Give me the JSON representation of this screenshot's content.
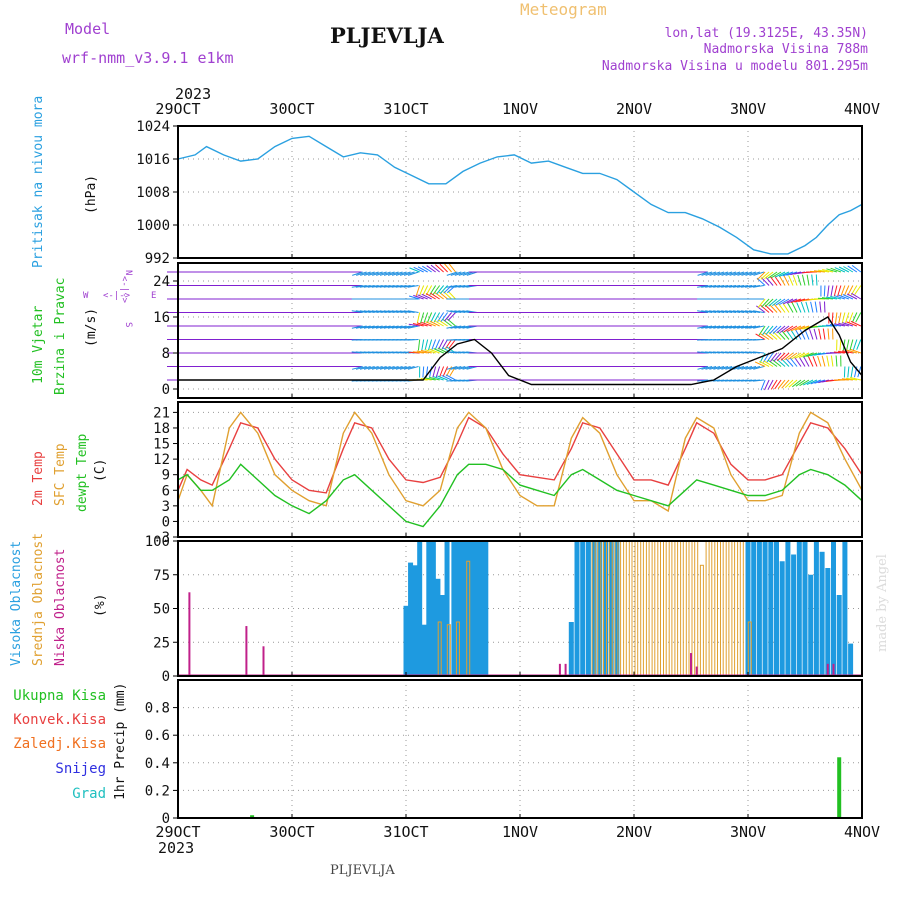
{
  "header": {
    "model_label": "Model",
    "model_name": "wrf-nmm_v3.9.1  e1km",
    "station": "PLJEVLJA",
    "product": "Meteogram",
    "lonlat": "lon,lat (19.3125E, 43.35N)",
    "elevation": "Nadmorska Visina 788m",
    "model_elevation": "Nadmorska Visina u modelu 801.295m",
    "footer_station": "PLJEVLJA",
    "credit": "made by Angel"
  },
  "colors": {
    "pressure": "#2aa0e0",
    "temp2m": "#e84040",
    "sfc": "#e0a030",
    "dewpt": "#22c022",
    "high": "#1e9ae0",
    "mid": "#e0a030",
    "low": "#c0208a",
    "wind": "#8020d0",
    "purple_text": "#a040d0",
    "grid": "#888888"
  },
  "time_axis": {
    "year": "2023",
    "ticks": [
      "29OCT",
      "30OCT",
      "31OCT",
      "1NOV",
      "2NOV",
      "3NOV",
      "4NOV"
    ]
  },
  "panels": {
    "pressure": {
      "label": "Pritisak na nivou mora",
      "unit": "(hPa)"
    },
    "wind": {
      "label1": "10m Vjetar",
      "label2": "Brzina i Pravac",
      "unit": "(m/s)",
      "compass": {
        "n": "N",
        "s": "S",
        "e": "E",
        "w": "W",
        "mid": "<-|->"
      }
    },
    "temp": {
      "label1": "2m Temp",
      "label2": "SFC Temp",
      "label3": "dewpt Temp",
      "unit": "(C)"
    },
    "cloud": {
      "label1": "Visoka Oblacnost",
      "label2": "Srednja Oblacnost",
      "label3": "Niska Oblacnost",
      "unit": "(%)"
    },
    "precip": {
      "unit": "1hr Precip (mm)",
      "legend": [
        "Ukupna Kisa",
        "Konvek.Kisa",
        "Zaledj.Kisa",
        "Snijeg",
        "Grad"
      ]
    }
  },
  "chart_data": [
    {
      "type": "line",
      "title": "Pritisak na nivou mora",
      "ylabel": "(hPa)",
      "ylim": [
        992,
        1024
      ],
      "yticks": [
        992,
        1000,
        1008,
        1016,
        1024
      ],
      "x_unit": "days since 29OCT 00Z",
      "series": [
        {
          "name": "Pritisak na nivou mora",
          "x": [
            0,
            0.15,
            0.25,
            0.4,
            0.55,
            0.7,
            0.85,
            1.0,
            1.15,
            1.3,
            1.45,
            1.6,
            1.75,
            1.9,
            2.05,
            2.2,
            2.35,
            2.5,
            2.65,
            2.8,
            2.95,
            3.1,
            3.25,
            3.4,
            3.55,
            3.7,
            3.85,
            4.0,
            4.15,
            4.3,
            4.45,
            4.6,
            4.75,
            4.9,
            5.05,
            5.2,
            5.35,
            5.5,
            5.6,
            5.7,
            5.8,
            5.9,
            6.0
          ],
          "values": [
            1016,
            1017,
            1019,
            1017,
            1015.5,
            1016,
            1019,
            1021,
            1021.5,
            1019,
            1016.5,
            1017.5,
            1017,
            1014,
            1012,
            1010,
            1010,
            1013,
            1015,
            1016.5,
            1017,
            1015,
            1015.5,
            1014,
            1012.5,
            1012.5,
            1011,
            1008,
            1005,
            1003,
            1003,
            1001.5,
            999.5,
            997,
            994,
            993,
            993,
            995,
            997,
            1000,
            1002.5,
            1003.5,
            1005
          ]
        }
      ]
    },
    {
      "type": "line",
      "title": "10m Vjetar Brzina i Pravac",
      "ylabel": "(m/s)",
      "ylim": [
        -2,
        28
      ],
      "yticks": [
        0,
        8,
        16,
        24
      ],
      "x_unit": "days since 29OCT 00Z",
      "series": [
        {
          "name": "wind speed",
          "x": [
            0,
            0.5,
            1.0,
            1.5,
            2.0,
            2.15,
            2.3,
            2.45,
            2.6,
            2.75,
            2.9,
            3.1,
            3.5,
            4.0,
            4.5,
            4.7,
            4.9,
            5.1,
            5.3,
            5.5,
            5.7,
            5.8,
            5.9,
            6.0
          ],
          "values": [
            2,
            2,
            2,
            2,
            2,
            2,
            7,
            10,
            11,
            8,
            3,
            1,
            1,
            1,
            1,
            2,
            5,
            7,
            9,
            13,
            16,
            12,
            6,
            3
          ]
        }
      ]
    },
    {
      "type": "line",
      "title": "2m Temp / SFC Temp / dewpt Temp",
      "ylabel": "(C)",
      "ylim": [
        -3,
        23
      ],
      "yticks": [
        -3,
        0,
        3,
        6,
        9,
        12,
        15,
        18,
        21
      ],
      "x_unit": "days since 29OCT 00Z",
      "series": [
        {
          "name": "2m Temp",
          "x": [
            0,
            0.08,
            0.2,
            0.3,
            0.45,
            0.55,
            0.7,
            0.85,
            1.0,
            1.15,
            1.3,
            1.45,
            1.55,
            1.7,
            1.85,
            2.0,
            2.15,
            2.3,
            2.45,
            2.55,
            2.7,
            2.85,
            3.0,
            3.15,
            3.3,
            3.45,
            3.55,
            3.7,
            3.85,
            4.0,
            4.15,
            4.3,
            4.45,
            4.55,
            4.7,
            4.85,
            5.0,
            5.15,
            5.3,
            5.45,
            5.55,
            5.7,
            5.85,
            6.0
          ],
          "values": [
            6,
            10,
            8,
            7,
            14,
            19,
            18,
            12,
            8,
            6,
            5.5,
            14,
            19,
            18,
            12,
            8,
            7.5,
            8.5,
            15,
            20,
            18,
            13,
            9,
            8.5,
            8,
            14,
            19,
            18,
            13,
            8,
            8,
            7,
            14,
            19,
            17,
            11,
            8,
            8,
            9,
            15,
            19,
            18,
            14,
            9
          ]
        },
        {
          "name": "SFC Temp",
          "x": [
            0,
            0.08,
            0.2,
            0.3,
            0.45,
            0.55,
            0.7,
            0.85,
            1.0,
            1.15,
            1.3,
            1.45,
            1.55,
            1.7,
            1.85,
            2.0,
            2.15,
            2.3,
            2.45,
            2.55,
            2.7,
            2.85,
            3.0,
            3.15,
            3.3,
            3.45,
            3.55,
            3.7,
            3.85,
            4.0,
            4.15,
            4.3,
            4.45,
            4.55,
            4.7,
            4.85,
            5.0,
            5.15,
            5.3,
            5.45,
            5.55,
            5.7,
            5.85,
            6.0
          ],
          "values": [
            4,
            9,
            6,
            3,
            18,
            21,
            17,
            9,
            6,
            4,
            3,
            17,
            21,
            17,
            9,
            4,
            3,
            6,
            18,
            21,
            18,
            10,
            5,
            3,
            3,
            16,
            20,
            17,
            9,
            4,
            4,
            2,
            16,
            20,
            18,
            9,
            4,
            4,
            5,
            17,
            21,
            19,
            12,
            6
          ]
        },
        {
          "name": "dewpt Temp",
          "x": [
            0,
            0.08,
            0.2,
            0.3,
            0.45,
            0.55,
            0.7,
            0.85,
            1.0,
            1.15,
            1.3,
            1.45,
            1.55,
            1.7,
            1.85,
            2.0,
            2.15,
            2.3,
            2.45,
            2.55,
            2.7,
            2.85,
            3.0,
            3.15,
            3.3,
            3.45,
            3.55,
            3.7,
            3.85,
            4.0,
            4.15,
            4.3,
            4.45,
            4.55,
            4.7,
            4.85,
            5.0,
            5.15,
            5.3,
            5.45,
            5.55,
            5.7,
            5.85,
            6.0
          ],
          "values": [
            8,
            9,
            6,
            6,
            8,
            11,
            8,
            5,
            3,
            1.5,
            4,
            8,
            9,
            6,
            3,
            0,
            -1,
            3,
            9,
            11,
            11,
            10,
            7,
            6,
            5,
            9,
            10,
            8,
            6,
            5,
            4,
            3,
            6,
            8,
            7,
            6,
            5,
            5,
            6,
            9,
            10,
            9,
            7,
            4
          ]
        }
      ]
    },
    {
      "type": "bar",
      "title": "Visoka / Srednja / Niska Oblacnost",
      "ylabel": "(%)",
      "ylim": [
        0,
        100
      ],
      "yticks": [
        0,
        25,
        50,
        75,
        100
      ],
      "x_unit": "days since 29OCT 00Z",
      "series": [
        {
          "name": "Visoka Oblacnost",
          "x": [
            2.0,
            2.04,
            2.08,
            2.12,
            2.16,
            2.2,
            2.24,
            2.28,
            2.32,
            2.36,
            2.42,
            2.46,
            2.5,
            2.54,
            2.58,
            2.62,
            2.66,
            2.7,
            3.45,
            3.5,
            3.55,
            3.6,
            3.65,
            3.7,
            3.75,
            3.8,
            3.85,
            5.0,
            5.05,
            5.1,
            5.15,
            5.2,
            5.25,
            5.3,
            5.35,
            5.4,
            5.45,
            5.5,
            5.55,
            5.6,
            5.65,
            5.7,
            5.75,
            5.8,
            5.85,
            5.9
          ],
          "values": [
            52,
            84,
            82,
            100,
            38,
            100,
            100,
            72,
            60,
            100,
            100,
            100,
            100,
            100,
            100,
            100,
            100,
            100,
            40,
            100,
            100,
            100,
            100,
            100,
            100,
            100,
            100,
            100,
            100,
            100,
            100,
            100,
            100,
            85,
            100,
            90,
            100,
            100,
            75,
            100,
            92,
            80,
            100,
            60,
            100,
            24
          ]
        },
        {
          "name": "Srednja Oblacnost",
          "x": [
            2.3,
            2.38,
            2.46,
            2.55,
            3.65,
            3.7,
            3.75,
            3.8,
            3.85,
            3.9,
            3.95,
            4.0,
            4.05,
            4.1,
            4.15,
            4.2,
            4.25,
            4.3,
            4.35,
            4.4,
            4.45,
            4.5,
            4.55,
            4.6,
            4.65,
            4.7,
            4.75,
            4.8,
            4.85,
            4.9,
            4.95,
            5.02
          ],
          "values": [
            40,
            38,
            40,
            85,
            100,
            100,
            100,
            100,
            100,
            100,
            100,
            100,
            100,
            100,
            100,
            100,
            100,
            100,
            100,
            100,
            100,
            100,
            100,
            82,
            100,
            100,
            100,
            100,
            100,
            100,
            100,
            40
          ]
        },
        {
          "name": "Niska Oblacnost",
          "x": [
            0.1,
            0.6,
            0.75,
            3.35,
            3.4,
            4.5,
            4.55,
            5.7,
            5.75
          ],
          "values": [
            62,
            37,
            22,
            9,
            9,
            17,
            7,
            9,
            9
          ]
        }
      ]
    },
    {
      "type": "bar",
      "title": "1hr Precip",
      "ylabel": "1hr Precip (mm)",
      "ylim": [
        0,
        1.0
      ],
      "yticks": [
        0,
        0.2,
        0.4,
        0.6,
        0.8
      ],
      "x_unit": "days since 29OCT 00Z",
      "series": [
        {
          "name": "Ukupna Kisa",
          "x": [
            0.65,
            5.8
          ],
          "values": [
            0.02,
            0.44
          ]
        }
      ]
    }
  ]
}
